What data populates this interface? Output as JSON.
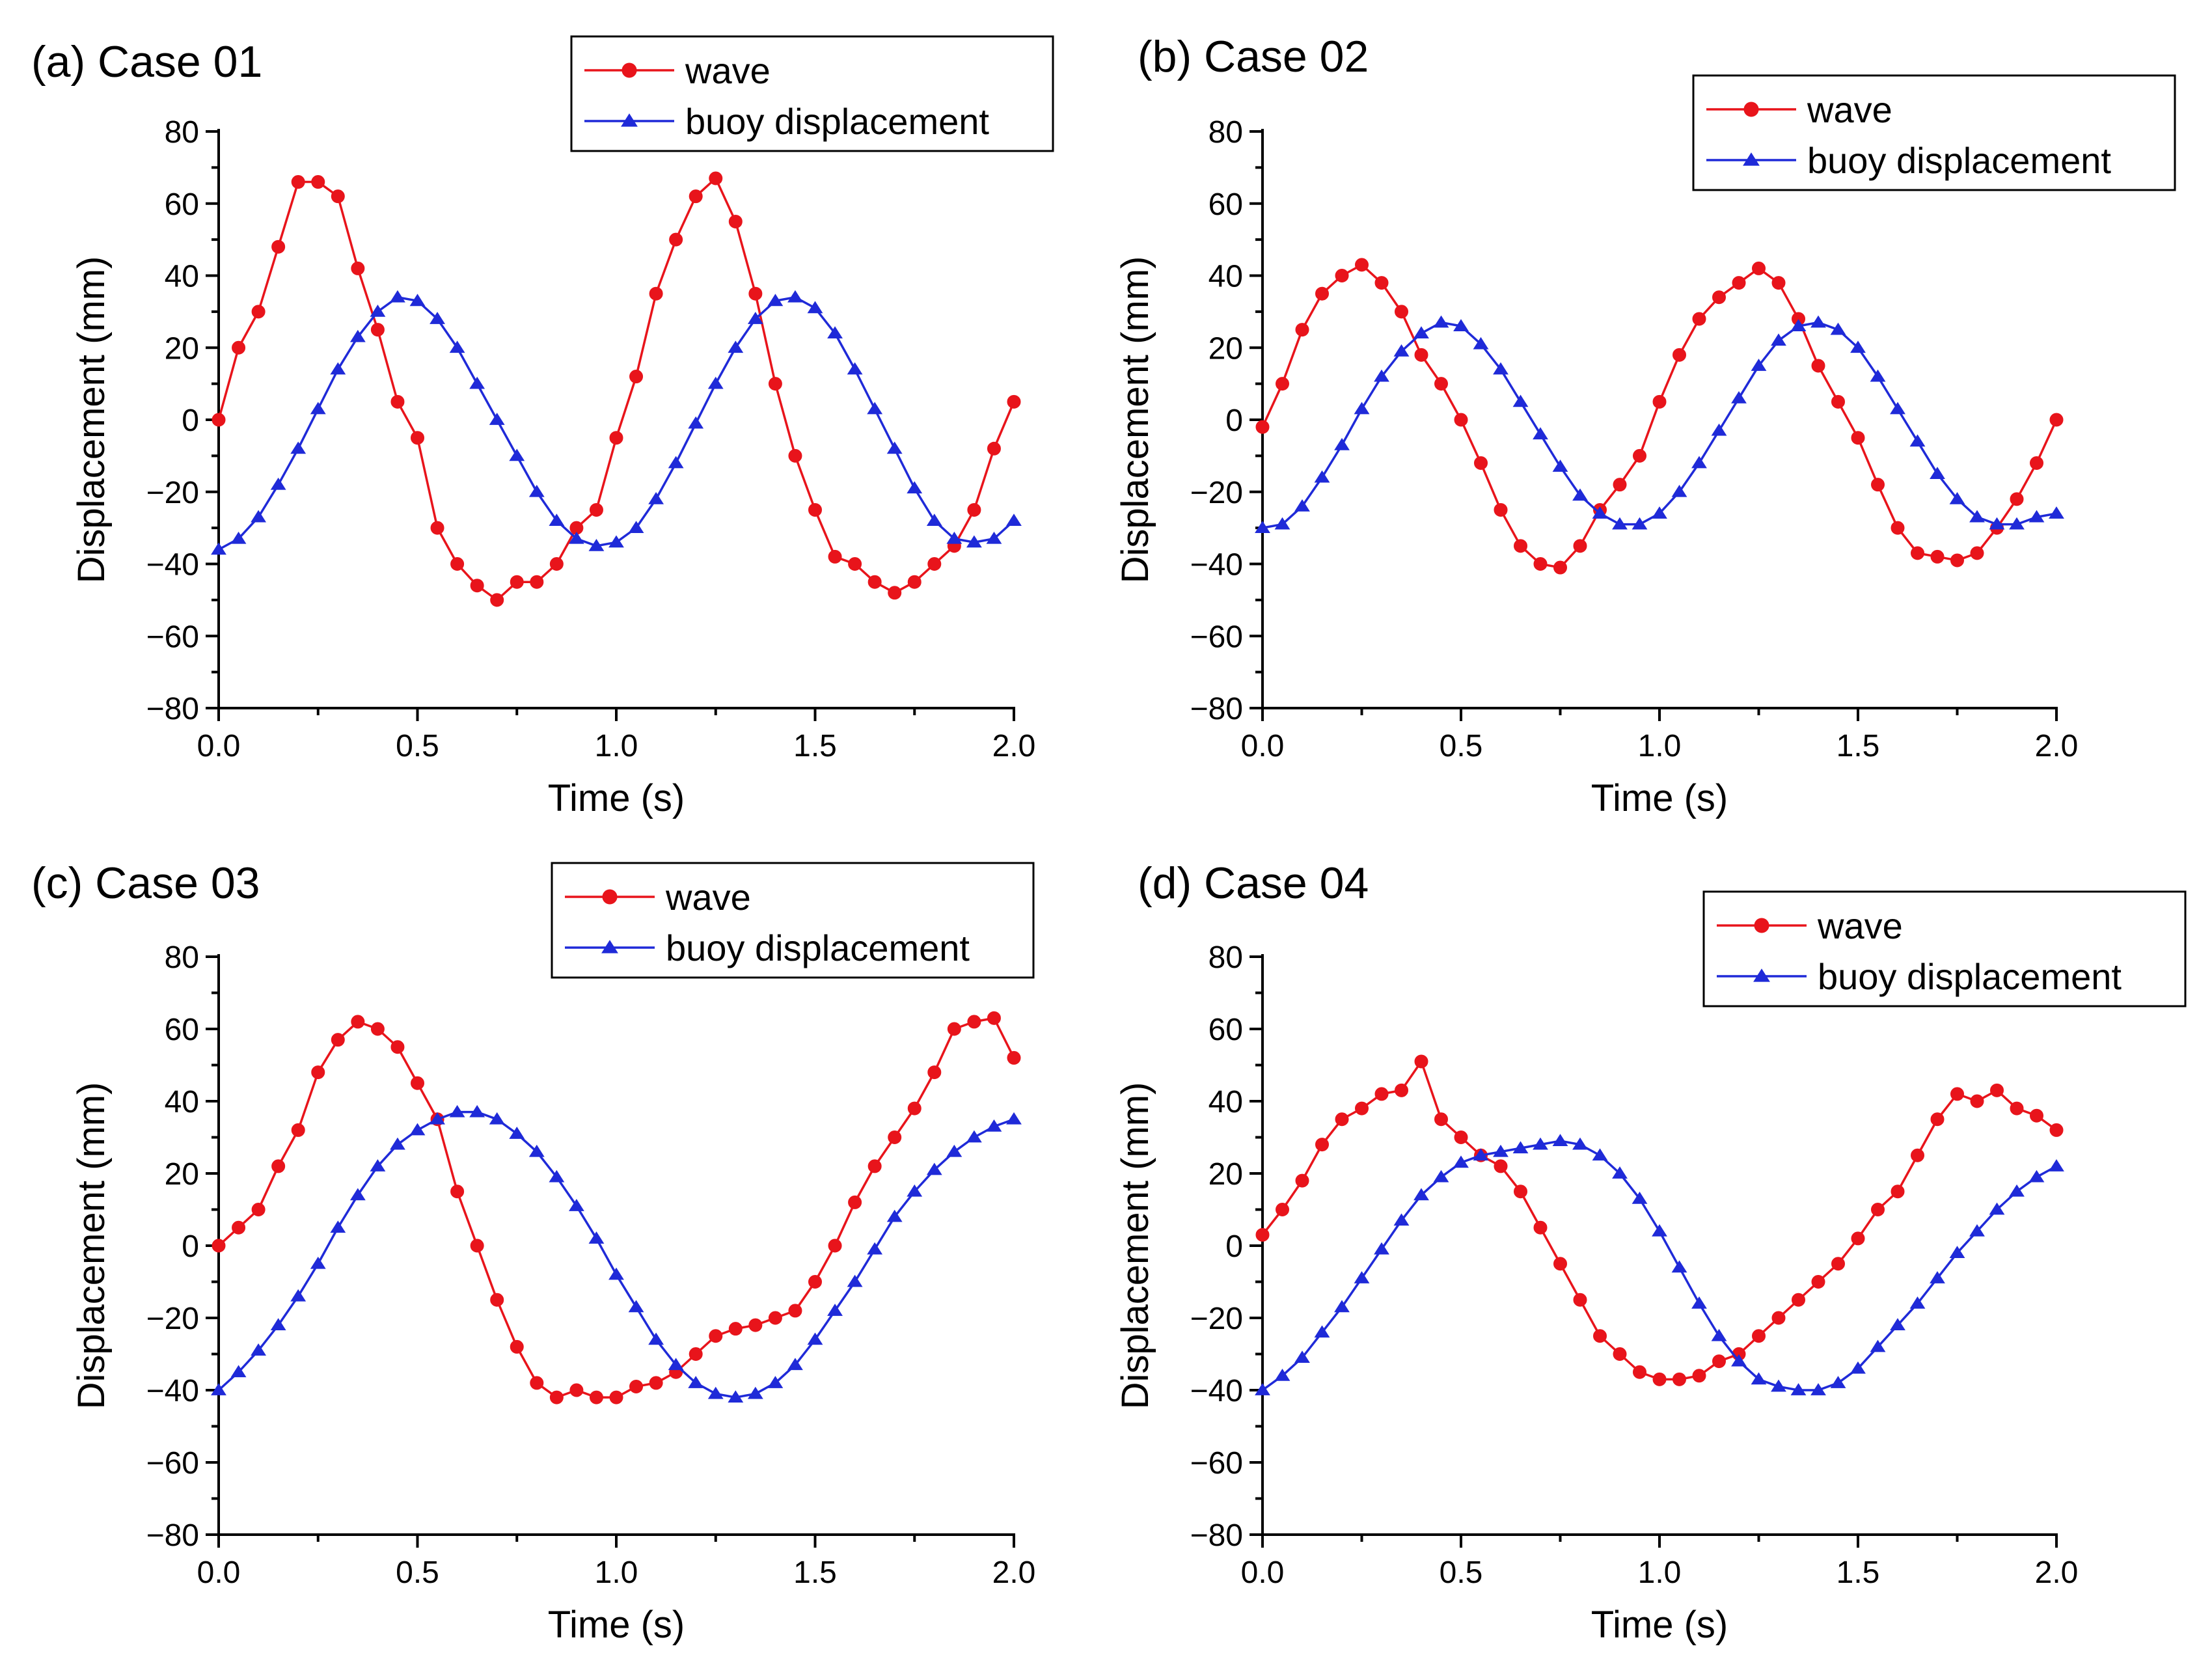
{
  "chart_data": [
    {
      "type": "line",
      "title": "(a) Case 01",
      "xlabel": "Time (s)",
      "ylabel": "Displacement (mm)",
      "xlim": [
        0.0,
        2.0
      ],
      "ylim": [
        -80,
        80
      ],
      "xticks": [
        "0.0",
        "0.5",
        "1.0",
        "1.5",
        "2.0"
      ],
      "yticks": [
        "80",
        "60",
        "40",
        "20",
        "0",
        "−20",
        "−40",
        "−60",
        "−80"
      ],
      "legend_position": "top-right",
      "series": [
        {
          "name": "wave",
          "color": "#e8141b",
          "marker": "circle",
          "x": [
            0.0,
            0.05,
            0.1,
            0.15,
            0.2,
            0.25,
            0.3,
            0.35,
            0.4,
            0.45,
            0.5,
            0.55,
            0.6,
            0.65,
            0.7,
            0.75,
            0.8,
            0.85,
            0.9,
            0.95,
            1.0,
            1.05,
            1.1,
            1.15,
            1.2,
            1.25,
            1.3,
            1.35,
            1.4,
            1.45,
            1.5,
            1.55,
            1.6,
            1.65,
            1.7,
            1.75,
            1.8,
            1.85,
            1.9,
            1.95,
            2.0
          ],
          "y": [
            0,
            20,
            30,
            48,
            66,
            66,
            62,
            42,
            25,
            5,
            -5,
            -30,
            -40,
            -46,
            -50,
            -45,
            -45,
            -40,
            -30,
            -25,
            -5,
            12,
            35,
            50,
            62,
            67,
            55,
            35,
            10,
            -10,
            -25,
            -38,
            -40,
            -45,
            -48,
            -45,
            -40,
            -35,
            -25,
            -8,
            5
          ]
        },
        {
          "name": "buoy displacement",
          "color": "#1f2ad8",
          "marker": "triangle",
          "x": [
            0.0,
            0.05,
            0.1,
            0.15,
            0.2,
            0.25,
            0.3,
            0.35,
            0.4,
            0.45,
            0.5,
            0.55,
            0.6,
            0.65,
            0.7,
            0.75,
            0.8,
            0.85,
            0.9,
            0.95,
            1.0,
            1.05,
            1.1,
            1.15,
            1.2,
            1.25,
            1.3,
            1.35,
            1.4,
            1.45,
            1.5,
            1.55,
            1.6,
            1.65,
            1.7,
            1.75,
            1.8,
            1.85,
            1.9,
            1.95,
            2.0
          ],
          "y": [
            -36,
            -33,
            -27,
            -18,
            -8,
            3,
            14,
            23,
            30,
            34,
            33,
            28,
            20,
            10,
            0,
            -10,
            -20,
            -28,
            -33,
            -35,
            -34,
            -30,
            -22,
            -12,
            -1,
            10,
            20,
            28,
            33,
            34,
            31,
            24,
            14,
            3,
            -8,
            -19,
            -28,
            -33,
            -34,
            -33,
            -28
          ]
        }
      ]
    },
    {
      "type": "line",
      "title": "(b) Case 02",
      "xlabel": "Time (s)",
      "ylabel": "Displacement (mm)",
      "xlim": [
        0.0,
        2.0
      ],
      "ylim": [
        -80,
        80
      ],
      "xticks": [
        "0.0",
        "0.5",
        "1.0",
        "1.5",
        "2.0"
      ],
      "yticks": [
        "80",
        "60",
        "40",
        "20",
        "0",
        "−20",
        "−40",
        "−60",
        "−80"
      ],
      "legend_position": "top-right",
      "series": [
        {
          "name": "wave",
          "color": "#e8141b",
          "marker": "circle",
          "x": [
            0.0,
            0.05,
            0.1,
            0.15,
            0.2,
            0.25,
            0.3,
            0.35,
            0.4,
            0.45,
            0.5,
            0.55,
            0.6,
            0.65,
            0.7,
            0.75,
            0.8,
            0.85,
            0.9,
            0.95,
            1.0,
            1.05,
            1.1,
            1.15,
            1.2,
            1.25,
            1.3,
            1.35,
            1.4,
            1.45,
            1.5,
            1.55,
            1.6,
            1.65,
            1.7,
            1.75,
            1.8,
            1.85,
            1.9,
            1.95,
            2.0
          ],
          "y": [
            -2,
            10,
            25,
            35,
            40,
            43,
            38,
            30,
            18,
            10,
            0,
            -12,
            -25,
            -35,
            -40,
            -41,
            -35,
            -25,
            -18,
            -10,
            5,
            18,
            28,
            34,
            38,
            42,
            38,
            28,
            15,
            5,
            -5,
            -18,
            -30,
            -37,
            -38,
            -39,
            -37,
            -30,
            -22,
            -12,
            0
          ]
        },
        {
          "name": "buoy displacement",
          "color": "#1f2ad8",
          "marker": "triangle",
          "x": [
            0.0,
            0.05,
            0.1,
            0.15,
            0.2,
            0.25,
            0.3,
            0.35,
            0.4,
            0.45,
            0.5,
            0.55,
            0.6,
            0.65,
            0.7,
            0.75,
            0.8,
            0.85,
            0.9,
            0.95,
            1.0,
            1.05,
            1.1,
            1.15,
            1.2,
            1.25,
            1.3,
            1.35,
            1.4,
            1.45,
            1.5,
            1.55,
            1.6,
            1.65,
            1.7,
            1.75,
            1.8,
            1.85,
            1.9,
            1.95,
            2.0
          ],
          "y": [
            -30,
            -29,
            -24,
            -16,
            -7,
            3,
            12,
            19,
            24,
            27,
            26,
            21,
            14,
            5,
            -4,
            -13,
            -21,
            -26,
            -29,
            -29,
            -26,
            -20,
            -12,
            -3,
            6,
            15,
            22,
            26,
            27,
            25,
            20,
            12,
            3,
            -6,
            -15,
            -22,
            -27,
            -29,
            -29,
            -27,
            -26
          ]
        }
      ]
    },
    {
      "type": "line",
      "title": "(c) Case 03",
      "xlabel": "Time (s)",
      "ylabel": "Displacement (mm)",
      "xlim": [
        0.0,
        2.0
      ],
      "ylim": [
        -80,
        80
      ],
      "xticks": [
        "0.0",
        "0.5",
        "1.0",
        "1.5",
        "2.0"
      ],
      "yticks": [
        "80",
        "60",
        "40",
        "20",
        "0",
        "−20",
        "−40",
        "−60",
        "−80"
      ],
      "legend_position": "top-right",
      "series": [
        {
          "name": "wave",
          "color": "#e8141b",
          "marker": "circle",
          "x": [
            0.0,
            0.05,
            0.1,
            0.15,
            0.2,
            0.25,
            0.3,
            0.35,
            0.4,
            0.45,
            0.5,
            0.55,
            0.6,
            0.65,
            0.7,
            0.75,
            0.8,
            0.85,
            0.9,
            0.95,
            1.0,
            1.05,
            1.1,
            1.15,
            1.2,
            1.25,
            1.3,
            1.35,
            1.4,
            1.45,
            1.5,
            1.55,
            1.6,
            1.65,
            1.7,
            1.75,
            1.8,
            1.85,
            1.9,
            1.95,
            2.0
          ],
          "y": [
            0,
            5,
            10,
            22,
            32,
            48,
            57,
            62,
            60,
            55,
            45,
            35,
            15,
            0,
            -15,
            -28,
            -38,
            -42,
            -40,
            -42,
            -42,
            -39,
            -38,
            -35,
            -30,
            -25,
            -23,
            -22,
            -20,
            -18,
            -10,
            0,
            12,
            22,
            30,
            38,
            48,
            60,
            62,
            63,
            52
          ]
        },
        {
          "name": "buoy displacement",
          "color": "#1f2ad8",
          "marker": "triangle",
          "x": [
            0.0,
            0.05,
            0.1,
            0.15,
            0.2,
            0.25,
            0.3,
            0.35,
            0.4,
            0.45,
            0.5,
            0.55,
            0.6,
            0.65,
            0.7,
            0.75,
            0.8,
            0.85,
            0.9,
            0.95,
            1.0,
            1.05,
            1.1,
            1.15,
            1.2,
            1.25,
            1.3,
            1.35,
            1.4,
            1.45,
            1.5,
            1.55,
            1.6,
            1.65,
            1.7,
            1.75,
            1.8,
            1.85,
            1.9,
            1.95,
            2.0
          ],
          "y": [
            -40,
            -35,
            -29,
            -22,
            -14,
            -5,
            5,
            14,
            22,
            28,
            32,
            35,
            37,
            37,
            35,
            31,
            26,
            19,
            11,
            2,
            -8,
            -17,
            -26,
            -33,
            -38,
            -41,
            -42,
            -41,
            -38,
            -33,
            -26,
            -18,
            -10,
            -1,
            8,
            15,
            21,
            26,
            30,
            33,
            35
          ]
        }
      ]
    },
    {
      "type": "line",
      "title": "(d) Case 04",
      "xlabel": "Time (s)",
      "ylabel": "Displacement (mm)",
      "xlim": [
        0.0,
        2.0
      ],
      "ylim": [
        -80,
        80
      ],
      "xticks": [
        "0.0",
        "0.5",
        "1.0",
        "1.5",
        "2.0"
      ],
      "yticks": [
        "80",
        "60",
        "40",
        "20",
        "0",
        "−20",
        "−40",
        "−60",
        "−80"
      ],
      "legend_position": "top-right",
      "series": [
        {
          "name": "wave",
          "color": "#e8141b",
          "marker": "circle",
          "x": [
            0.0,
            0.05,
            0.1,
            0.15,
            0.2,
            0.25,
            0.3,
            0.35,
            0.4,
            0.45,
            0.5,
            0.55,
            0.6,
            0.65,
            0.7,
            0.75,
            0.8,
            0.85,
            0.9,
            0.95,
            1.0,
            1.05,
            1.1,
            1.15,
            1.2,
            1.25,
            1.3,
            1.35,
            1.4,
            1.45,
            1.5,
            1.55,
            1.6,
            1.65,
            1.7,
            1.75,
            1.8,
            1.85,
            1.9,
            1.95,
            2.0
          ],
          "y": [
            3,
            10,
            18,
            28,
            35,
            38,
            42,
            43,
            51,
            35,
            30,
            25,
            22,
            15,
            5,
            -5,
            -15,
            -25,
            -30,
            -35,
            -37,
            -37,
            -36,
            -32,
            -30,
            -25,
            -20,
            -15,
            -10,
            -5,
            2,
            10,
            15,
            25,
            35,
            42,
            40,
            43,
            38,
            36,
            32
          ]
        },
        {
          "name": "buoy displacement",
          "color": "#1f2ad8",
          "marker": "triangle",
          "x": [
            0.0,
            0.05,
            0.1,
            0.15,
            0.2,
            0.25,
            0.3,
            0.35,
            0.4,
            0.45,
            0.5,
            0.55,
            0.6,
            0.65,
            0.7,
            0.75,
            0.8,
            0.85,
            0.9,
            0.95,
            1.0,
            1.05,
            1.1,
            1.15,
            1.2,
            1.25,
            1.3,
            1.35,
            1.4,
            1.45,
            1.5,
            1.55,
            1.6,
            1.65,
            1.7,
            1.75,
            1.8,
            1.85,
            1.9,
            1.95,
            2.0
          ],
          "y": [
            -40,
            -36,
            -31,
            -24,
            -17,
            -9,
            -1,
            7,
            14,
            19,
            23,
            25,
            26,
            27,
            28,
            29,
            28,
            25,
            20,
            13,
            4,
            -6,
            -16,
            -25,
            -32,
            -37,
            -39,
            -40,
            -40,
            -38,
            -34,
            -28,
            -22,
            -16,
            -9,
            -2,
            4,
            10,
            15,
            19,
            22
          ]
        }
      ]
    }
  ]
}
